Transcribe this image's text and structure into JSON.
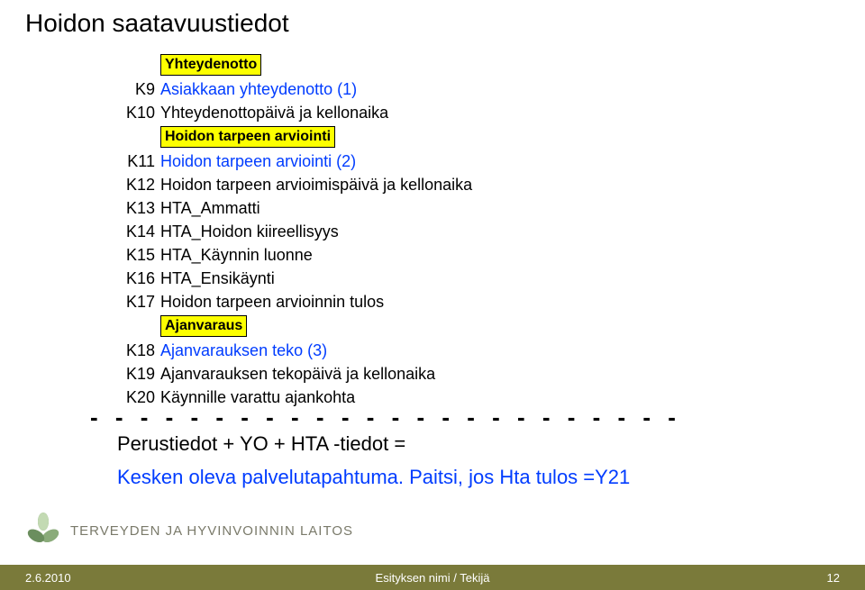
{
  "title": "Hoidon saatavuustiedot",
  "rows": [
    {
      "type": "hl",
      "text": "Yhteydenotto"
    },
    {
      "type": "item",
      "code": "K9",
      "text": "Asiakkaan yhteydenotto (1)",
      "blue": true
    },
    {
      "type": "item",
      "code": "K10",
      "text": "Yhteydenottopäivä ja kellonaika",
      "blue": false
    },
    {
      "type": "hl",
      "text": "Hoidon tarpeen arviointi"
    },
    {
      "type": "item",
      "code": "K11",
      "text": "Hoidon tarpeen arviointi (2)",
      "blue": true
    },
    {
      "type": "item",
      "code": "K12",
      "text": "Hoidon tarpeen arvioimispäivä ja kellonaika",
      "blue": false
    },
    {
      "type": "item",
      "code": "K13",
      "text": "HTA_Ammatti",
      "blue": false
    },
    {
      "type": "item",
      "code": "K14",
      "text": "HTA_Hoidon kiireellisyys",
      "blue": false
    },
    {
      "type": "item",
      "code": "K15",
      "text": "HTA_Käynnin luonne",
      "blue": false
    },
    {
      "type": "item",
      "code": "K16",
      "text": "HTA_Ensikäynti",
      "blue": false
    },
    {
      "type": "item",
      "code": "K17",
      "text": "Hoidon tarpeen arvioinnin tulos",
      "blue": false
    },
    {
      "type": "hl",
      "text": "Ajanvaraus"
    },
    {
      "type": "item",
      "code": "K18",
      "text": "Ajanvarauksen teko (3)",
      "blue": true
    },
    {
      "type": "item",
      "code": "K19",
      "text": "Ajanvarauksen tekopäivä ja kellonaika",
      "blue": false
    },
    {
      "type": "item",
      "code": "K20",
      "text": "Käynnille varattu ajankohta",
      "blue": false
    }
  ],
  "dashes": "- - - - - - - - - - - - - - - - - - - - - - - -",
  "summary1": "Perustiedot + YO + HTA -tiedot =",
  "summary2": "Kesken oleva palvelutapahtuma. Paitsi, jos Hta tulos =Y21",
  "org": "TERVEYDEN JA HYVINVOINNIN LAITOS",
  "footer": {
    "date": "2.6.2010",
    "center": "Esityksen nimi / Tekijä",
    "page": "12"
  },
  "flower_petals": [
    "#6b8e5e",
    "#8aab7a",
    "#a8c596",
    "#c3dab3"
  ],
  "hl_bg": "#fcff00",
  "blue_color": "#003cff"
}
